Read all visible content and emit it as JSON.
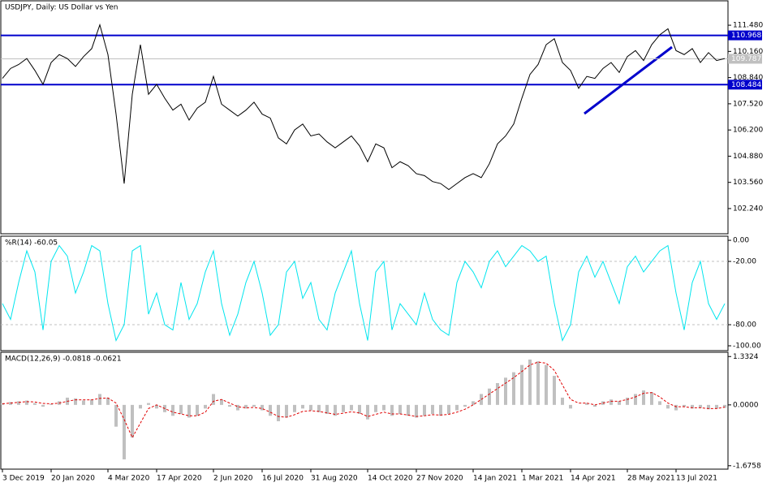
{
  "chart_data": [
    {
      "type": "line",
      "title": "USDJPY, Daily:  US Dollar vs Yen",
      "color": "#000000",
      "values": [
        108.8,
        109.3,
        109.5,
        109.8,
        109.2,
        108.5,
        109.6,
        110.0,
        109.8,
        109.4,
        109.9,
        110.3,
        111.5,
        110.0,
        107.0,
        103.5,
        108.0,
        110.5,
        108.0,
        108.5,
        107.8,
        107.2,
        107.5,
        106.7,
        107.3,
        107.6,
        108.9,
        107.5,
        107.2,
        106.9,
        107.2,
        107.6,
        107.0,
        106.8,
        105.8,
        105.5,
        106.2,
        106.5,
        105.9,
        106.0,
        105.6,
        105.3,
        105.6,
        105.9,
        105.4,
        104.6,
        105.5,
        105.3,
        104.3,
        104.6,
        104.4,
        104.0,
        103.9,
        103.6,
        103.5,
        103.2,
        103.5,
        103.8,
        104.0,
        103.8,
        104.5,
        105.5,
        105.9,
        106.5,
        107.8,
        109.0,
        109.5,
        110.5,
        110.8,
        109.6,
        109.2,
        108.3,
        108.9,
        108.8,
        109.3,
        109.6,
        109.1,
        109.9,
        110.2,
        109.7,
        110.5,
        111.0,
        111.3,
        110.2,
        110.0,
        110.3,
        109.6,
        110.1,
        109.7,
        109.8
      ],
      "levels": [
        110.968,
        108.484
      ],
      "level_color": "#0000cc",
      "last_price": 109.787,
      "last_price_color": "#c0c0c0",
      "ylim": [
        100.97,
        112.71
      ],
      "yticks": [
        {
          "value": 102.24,
          "label": "102.240"
        },
        {
          "value": 103.56,
          "label": "103.560"
        },
        {
          "value": 104.88,
          "label": "104.880"
        },
        {
          "value": 106.2,
          "label": "106.200"
        },
        {
          "value": 107.52,
          "label": "107.520"
        },
        {
          "value": 108.84,
          "label": "108.840"
        },
        {
          "value": 110.16,
          "label": "110.160"
        },
        {
          "value": 111.48,
          "label": "111.480"
        }
      ]
    },
    {
      "type": "line",
      "title": "%R(14) -60.05",
      "color": "#00e5ee",
      "values": [
        -60,
        -75,
        -40,
        -10,
        -30,
        -85,
        -20,
        -5,
        -15,
        -50,
        -30,
        -5,
        -10,
        -60,
        -95,
        -80,
        -10,
        -5,
        -70,
        -50,
        -80,
        -85,
        -40,
        -75,
        -60,
        -30,
        -10,
        -60,
        -90,
        -70,
        -40,
        -20,
        -50,
        -90,
        -80,
        -30,
        -20,
        -55,
        -40,
        -75,
        -85,
        -50,
        -30,
        -10,
        -60,
        -95,
        -30,
        -20,
        -85,
        -60,
        -70,
        -80,
        -50,
        -75,
        -85,
        -90,
        -40,
        -20,
        -30,
        -45,
        -20,
        -10,
        -25,
        -15,
        -5,
        -10,
        -20,
        -15,
        -60,
        -95,
        -80,
        -30,
        -15,
        -35,
        -20,
        -40,
        -60,
        -25,
        -15,
        -30,
        -20,
        -10,
        -5,
        -50,
        -85,
        -40,
        -20,
        -60,
        -75,
        -60.05
      ],
      "ylim": [
        -104.6,
        3.9
      ],
      "yticks": [
        {
          "value": 0,
          "label": "0.00"
        },
        {
          "value": -20,
          "label": "-20.00"
        },
        {
          "value": -80,
          "label": "-80.00"
        },
        {
          "value": -100,
          "label": "-100.00"
        }
      ],
      "dashed_levels": [
        -20,
        -80
      ]
    },
    {
      "type": "macd",
      "title": "MACD(12,26,9) -0.0818 -0.0621",
      "series": [
        {
          "kind": "bar",
          "color": "#c0c0c0",
          "values": [
            0.05,
            0.08,
            0.1,
            0.12,
            0.05,
            -0.05,
            0.02,
            0.1,
            0.2,
            0.18,
            0.12,
            0.15,
            0.3,
            0.2,
            -0.6,
            -1.5,
            -0.9,
            -0.1,
            0.05,
            -0.1,
            -0.2,
            -0.3,
            -0.25,
            -0.35,
            -0.3,
            -0.1,
            0.3,
            0.15,
            -0.05,
            -0.15,
            -0.1,
            -0.05,
            -0.15,
            -0.3,
            -0.45,
            -0.35,
            -0.2,
            -0.1,
            -0.15,
            -0.2,
            -0.25,
            -0.3,
            -0.2,
            -0.15,
            -0.25,
            -0.4,
            -0.2,
            -0.15,
            -0.3,
            -0.25,
            -0.3,
            -0.35,
            -0.3,
            -0.25,
            -0.3,
            -0.25,
            -0.15,
            -0.05,
            0.1,
            0.3,
            0.45,
            0.6,
            0.75,
            0.9,
            1.1,
            1.25,
            1.2,
            1.1,
            0.8,
            0.2,
            -0.1,
            0.0,
            0.05,
            -0.05,
            0.1,
            0.15,
            0.1,
            0.2,
            0.3,
            0.4,
            0.35,
            0.1,
            -0.1,
            -0.15,
            -0.05,
            -0.1,
            -0.08,
            -0.12,
            -0.1,
            -0.0818
          ]
        },
        {
          "kind": "line",
          "color": "#e00000",
          "values": [
            0.03,
            0.05,
            0.07,
            0.09,
            0.08,
            0.04,
            0.03,
            0.05,
            0.1,
            0.14,
            0.14,
            0.14,
            0.18,
            0.19,
            0.05,
            -0.4,
            -0.9,
            -0.5,
            -0.1,
            0.0,
            -0.1,
            -0.2,
            -0.25,
            -0.3,
            -0.3,
            -0.2,
            0.1,
            0.15,
            0.05,
            -0.05,
            -0.08,
            -0.07,
            -0.1,
            -0.2,
            -0.32,
            -0.34,
            -0.27,
            -0.18,
            -0.16,
            -0.18,
            -0.22,
            -0.26,
            -0.23,
            -0.19,
            -0.22,
            -0.32,
            -0.26,
            -0.2,
            -0.25,
            -0.25,
            -0.28,
            -0.32,
            -0.3,
            -0.27,
            -0.28,
            -0.26,
            -0.2,
            -0.12,
            0.0,
            0.15,
            0.3,
            0.45,
            0.6,
            0.75,
            0.92,
            1.1,
            1.18,
            1.15,
            0.95,
            0.55,
            0.15,
            0.05,
            0.05,
            0.0,
            0.05,
            0.1,
            0.1,
            0.15,
            0.22,
            0.32,
            0.34,
            0.22,
            0.05,
            -0.05,
            -0.05,
            -0.08,
            -0.08,
            -0.1,
            -0.1,
            -0.0621
          ]
        }
      ],
      "ylim": [
        -1.77,
        1.45
      ],
      "yticks": [
        {
          "value": 1.3324,
          "label": "1.3324"
        },
        {
          "value": 0,
          "label": "0.0000"
        },
        {
          "value": -1.6758,
          "label": "-1.6758"
        }
      ],
      "xticks": [
        {
          "value": 0,
          "label": "3 Dec 2019"
        },
        {
          "value": 6,
          "label": "20 Jan 2020"
        },
        {
          "value": 13,
          "label": "4 Mar 2020"
        },
        {
          "value": 19,
          "label": "17 Apr 2020"
        },
        {
          "value": 26,
          "label": "2 Jun 2020"
        },
        {
          "value": 32,
          "label": "16 Jul 2020"
        },
        {
          "value": 38,
          "label": "31 Aug 2020"
        },
        {
          "value": 45,
          "label": "14 Oct 2020"
        },
        {
          "value": 51,
          "label": "27 Nov 2020"
        },
        {
          "value": 58,
          "label": "14 Jan 2021"
        },
        {
          "value": 64,
          "label": "1 Mar 2021"
        },
        {
          "value": 70,
          "label": "14 Apr 2021"
        },
        {
          "value": 77,
          "label": "28 May 2021"
        },
        {
          "value": 83,
          "label": "13 Jul 2021"
        }
      ]
    }
  ]
}
